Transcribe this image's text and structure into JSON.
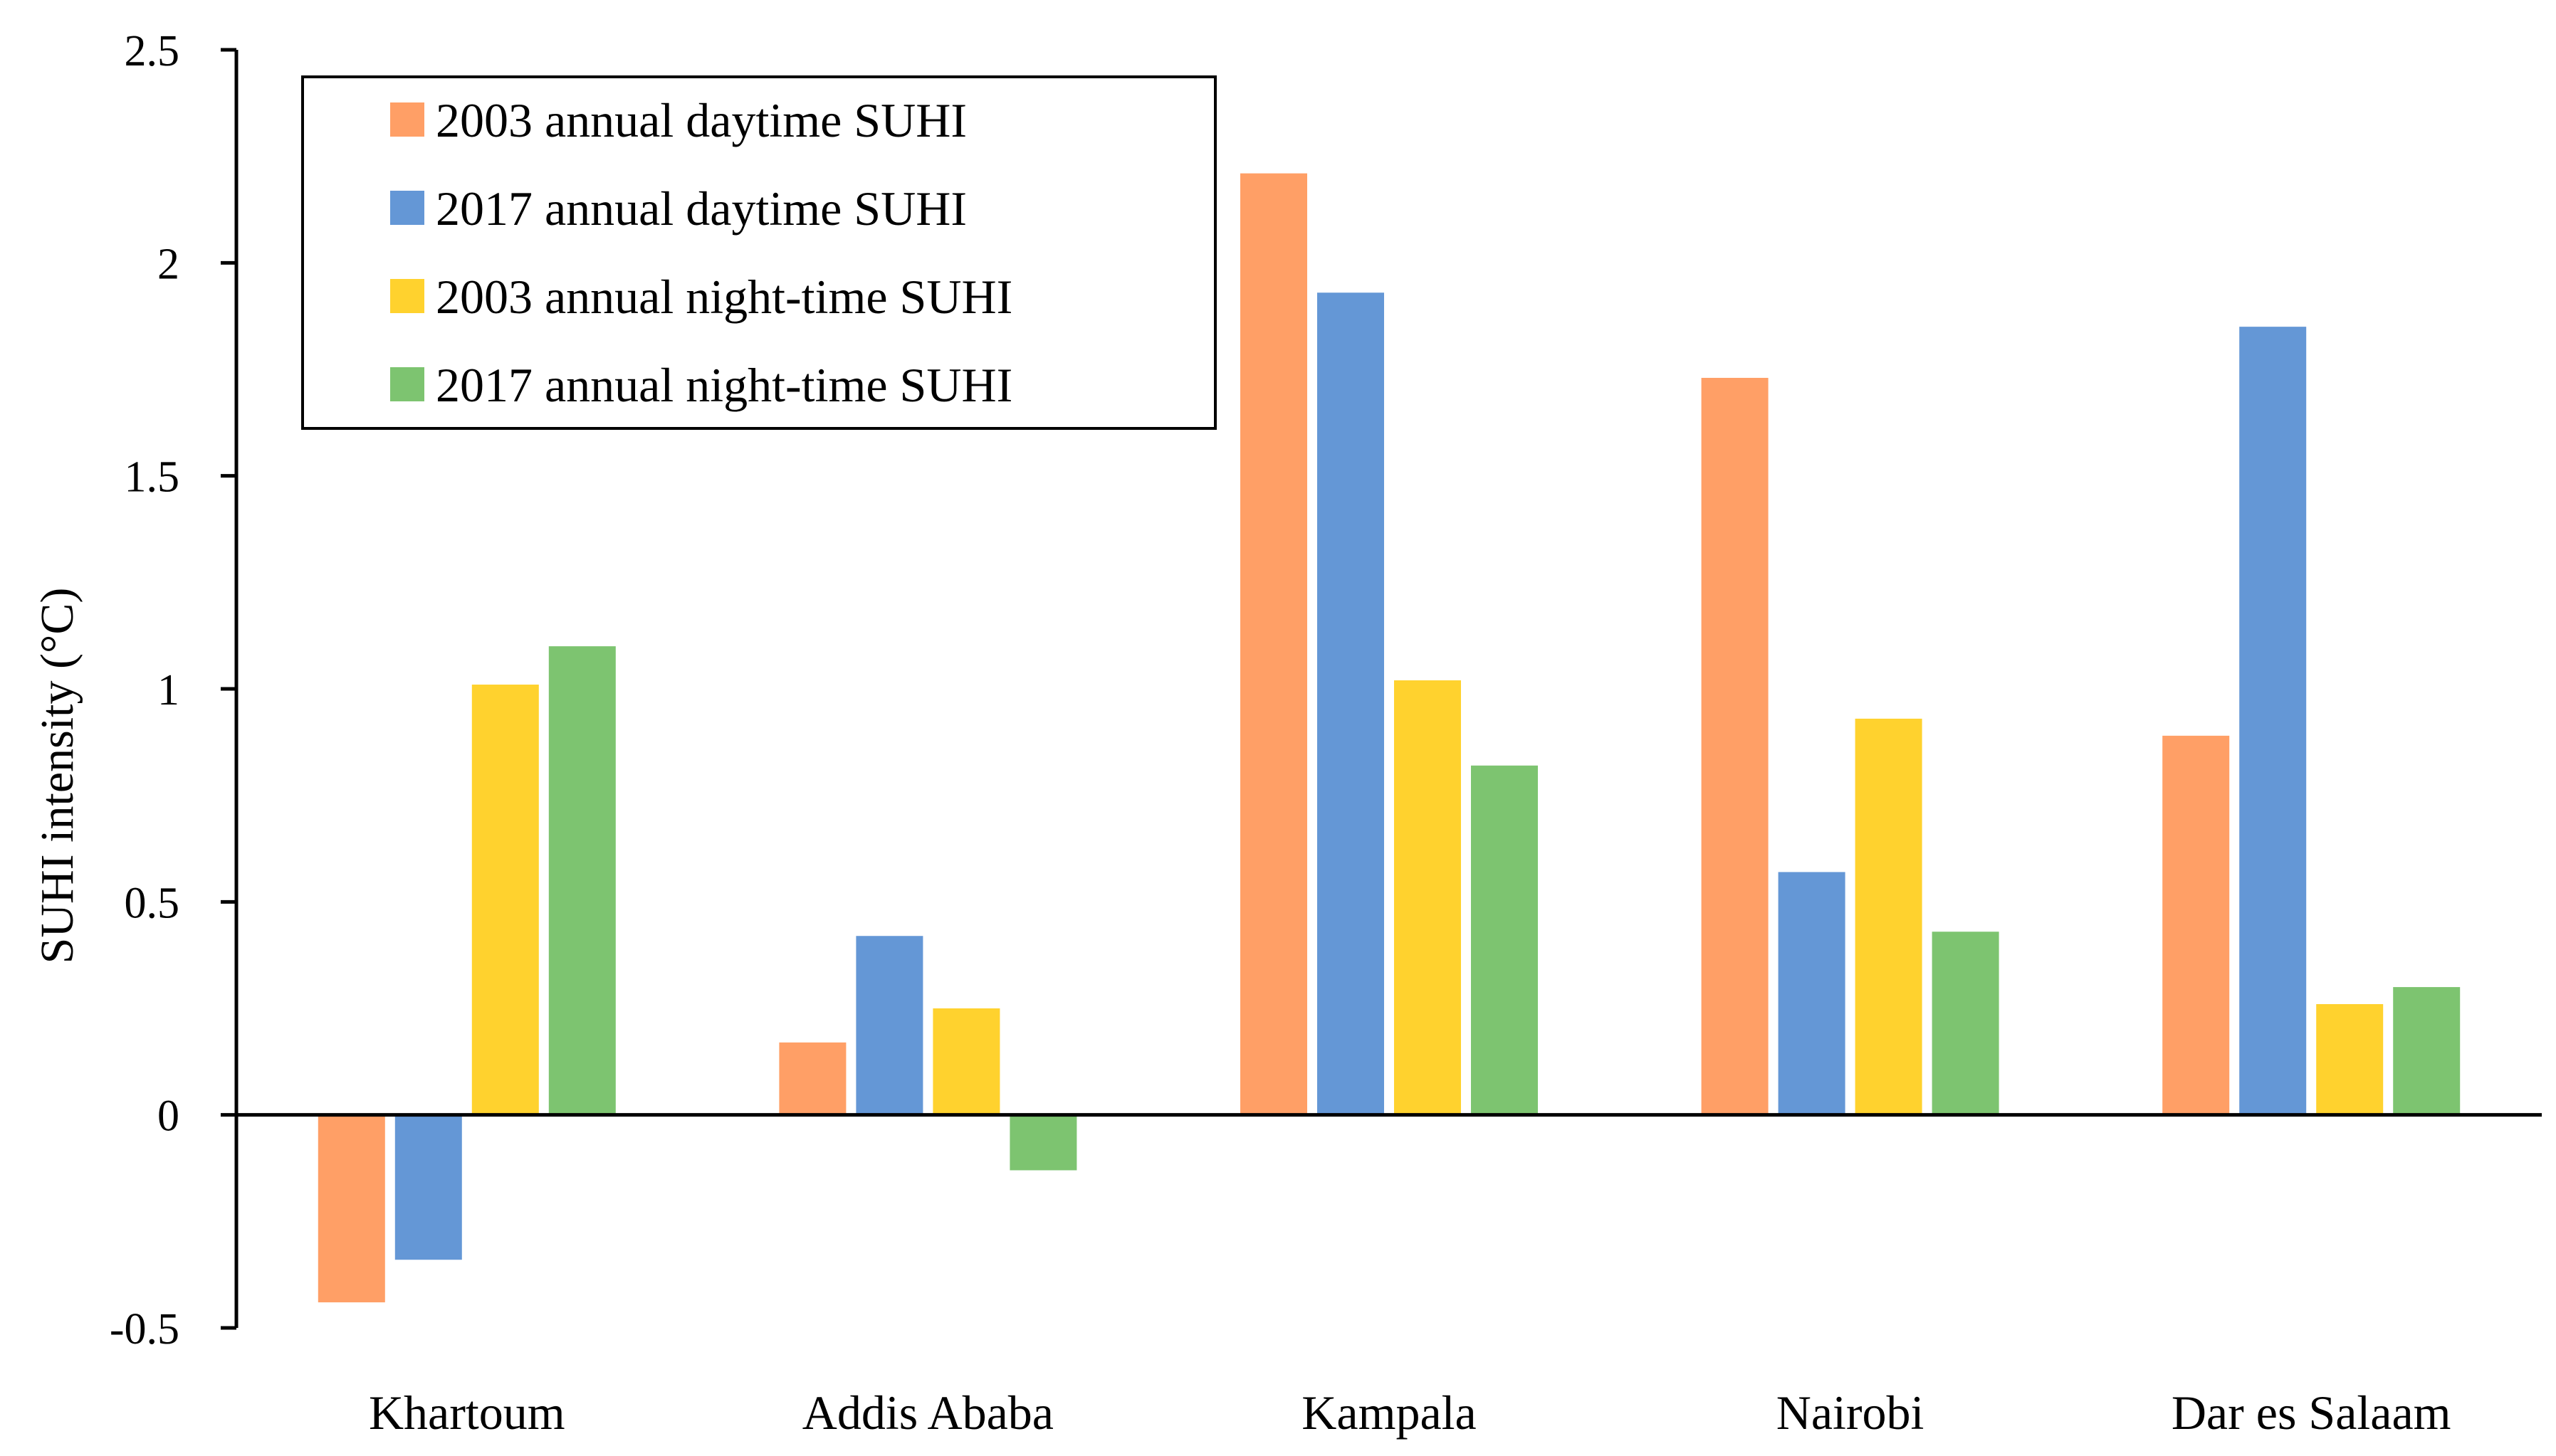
{
  "chart_data": {
    "type": "bar",
    "title": "",
    "xlabel": "",
    "ylabel": "SUHI intensity (°C)",
    "ylim": [
      -0.5,
      2.5
    ],
    "yticks": [
      -0.5,
      0,
      0.5,
      1,
      1.5,
      2,
      2.5
    ],
    "ytick_labels": [
      "-0.5",
      "0",
      "0.5",
      "1",
      "1.5",
      "2",
      "2.5"
    ],
    "grid": false,
    "legend_position": "top-left",
    "categories": [
      "Khartoum",
      "Addis Ababa",
      "Kampala",
      "Nairobi",
      "Dar es Salaam"
    ],
    "series": [
      {
        "name": "2003 annual daytime SUHI",
        "color": "#FF9F66",
        "values": [
          -0.44,
          0.17,
          2.21,
          1.73,
          0.89
        ]
      },
      {
        "name": "2017 annual daytime SUHI",
        "color": "#6497D6",
        "values": [
          -0.34,
          0.42,
          1.93,
          0.57,
          1.85
        ]
      },
      {
        "name": "2003 annual night-time SUHI",
        "color": "#FFD22E",
        "values": [
          1.01,
          0.25,
          1.02,
          0.93,
          0.26
        ]
      },
      {
        "name": "2017 annual night-time SUHI",
        "color": "#7DC470",
        "values": [
          1.1,
          -0.13,
          0.82,
          0.43,
          0.3
        ]
      }
    ]
  }
}
